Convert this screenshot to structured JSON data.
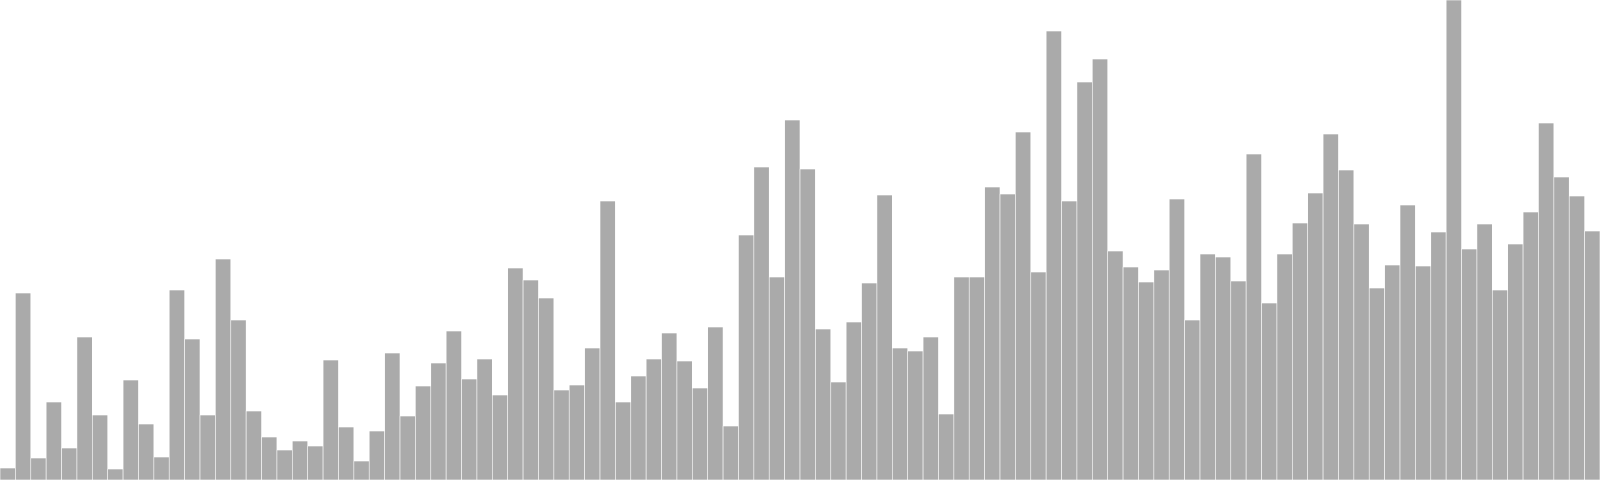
{
  "chart_data": {
    "type": "bar",
    "title": "",
    "xlabel": "",
    "ylabel": "",
    "grid": false,
    "legend": "none",
    "bar_color": "#aaaaaa",
    "ylim": [
      0,
      480
    ],
    "values": [
      12,
      187,
      22,
      78,
      32,
      143,
      65,
      11,
      100,
      56,
      23,
      190,
      141,
      65,
      221,
      160,
      69,
      43,
      30,
      39,
      34,
      120,
      53,
      19,
      49,
      127,
      64,
      94,
      117,
      149,
      101,
      121,
      85,
      212,
      200,
      182,
      90,
      95,
      132,
      279,
      78,
      104,
      121,
      147,
      119,
      92,
      153,
      54,
      245,
      313,
      203,
      360,
      311,
      151,
      98,
      158,
      197,
      285,
      132,
      129,
      143,
      66,
      203,
      203,
      293,
      286,
      348,
      208,
      449,
      279,
      398,
      421,
      229,
      213,
      198,
      210,
      281,
      160,
      226,
      223,
      199,
      326,
      177,
      226,
      257,
      287,
      346,
      310,
      256,
      192,
      215,
      275,
      214,
      248,
      480,
      231,
      256,
      190,
      236,
      268,
      357,
      303,
      284,
      249
    ]
  }
}
